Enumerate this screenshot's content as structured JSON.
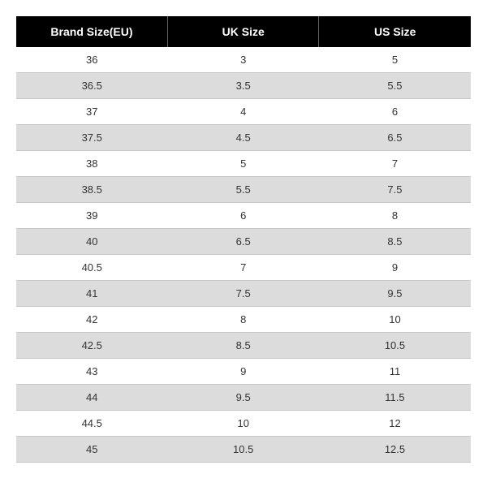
{
  "table": {
    "columns": [
      "Brand Size(EU)",
      "UK Size",
      "US Size"
    ],
    "header_bg": "#000000",
    "header_fg": "#ffffff",
    "row_bg_even": "#ffffff",
    "row_bg_odd": "#dcdcdc",
    "border_color": "#c8c8c8",
    "text_color": "#333333",
    "header_fontsize": 14,
    "cell_fontsize": 13,
    "rows": [
      [
        "36",
        "3",
        "5"
      ],
      [
        "36.5",
        "3.5",
        "5.5"
      ],
      [
        "37",
        "4",
        "6"
      ],
      [
        "37.5",
        "4.5",
        "6.5"
      ],
      [
        "38",
        "5",
        "7"
      ],
      [
        "38.5",
        "5.5",
        "7.5"
      ],
      [
        "39",
        "6",
        "8"
      ],
      [
        "40",
        "6.5",
        "8.5"
      ],
      [
        "40.5",
        "7",
        "9"
      ],
      [
        "41",
        "7.5",
        "9.5"
      ],
      [
        "42",
        "8",
        "10"
      ],
      [
        "42.5",
        "8.5",
        "10.5"
      ],
      [
        "43",
        "9",
        "11"
      ],
      [
        "44",
        "9.5",
        "11.5"
      ],
      [
        "44.5",
        "10",
        "12"
      ],
      [
        "45",
        "10.5",
        "12.5"
      ]
    ]
  }
}
